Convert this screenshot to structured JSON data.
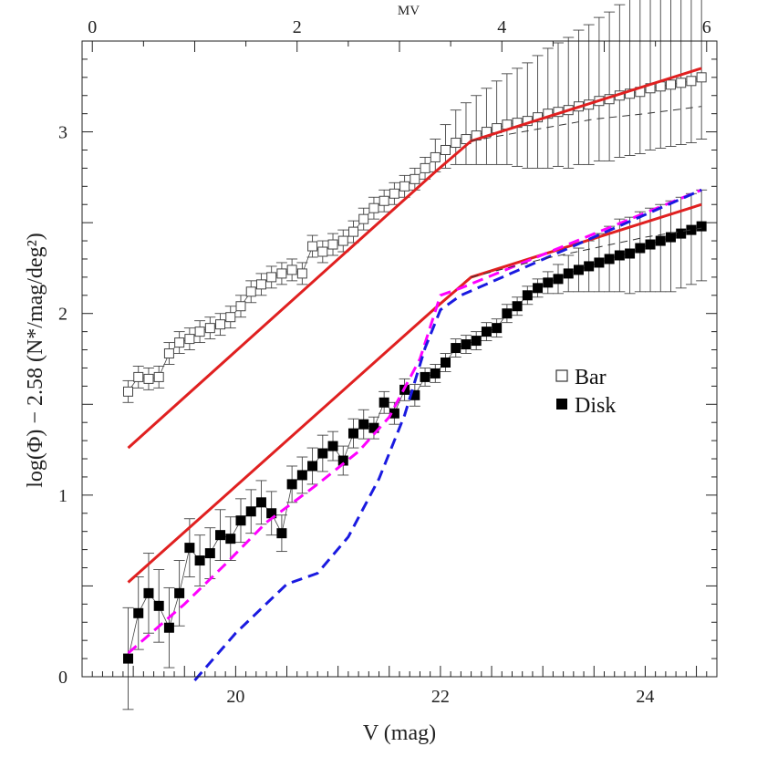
{
  "chart_data": {
    "type": "scatter",
    "title": "",
    "xlabel": "V (mag)",
    "ylabel": "log(Φ) − 2.58  (N*/mag/deg²)",
    "top_xlabel": "MV",
    "xlim": [
      18.5,
      24.7
    ],
    "ylim": [
      0,
      3.5
    ],
    "x_ticks": [
      "20",
      "22",
      "24"
    ],
    "x_tick_values": [
      20,
      22,
      24
    ],
    "top_ticks": [
      "0",
      "2",
      "4",
      "6"
    ],
    "top_tick_values": [
      18.6,
      20.6,
      22.6,
      24.6
    ],
    "y_ticks": [
      "0",
      "1",
      "2",
      "3"
    ],
    "y_tick_values": [
      0,
      1,
      2,
      3
    ],
    "grid": false,
    "legend": {
      "position": "right-middle",
      "entries": [
        {
          "label": "Bar",
          "marker": "open-square"
        },
        {
          "label": "Disk",
          "marker": "filled-square"
        }
      ]
    },
    "series": [
      {
        "name": "Bar",
        "marker": "open-square",
        "x": [
          18.95,
          19.05,
          19.15,
          19.25,
          19.35,
          19.45,
          19.55,
          19.65,
          19.75,
          19.85,
          19.95,
          20.05,
          20.15,
          20.25,
          20.35,
          20.45,
          20.55,
          20.65,
          20.75,
          20.85,
          20.95,
          21.05,
          21.15,
          21.25,
          21.35,
          21.45,
          21.55,
          21.65,
          21.75,
          21.85,
          21.95,
          22.05,
          22.15,
          22.25,
          22.35,
          22.45,
          22.55,
          22.65,
          22.75,
          22.85,
          22.95,
          23.05,
          23.15,
          23.25,
          23.35,
          23.45,
          23.55,
          23.65,
          23.75,
          23.85,
          23.95,
          24.05,
          24.15,
          24.25,
          24.35,
          24.45,
          24.55
        ],
        "y": [
          1.57,
          1.65,
          1.64,
          1.65,
          1.78,
          1.84,
          1.86,
          1.9,
          1.92,
          1.94,
          1.98,
          2.04,
          2.12,
          2.16,
          2.2,
          2.22,
          2.24,
          2.22,
          2.37,
          2.34,
          2.38,
          2.4,
          2.45,
          2.52,
          2.58,
          2.62,
          2.66,
          2.7,
          2.74,
          2.8,
          2.86,
          2.9,
          2.94,
          2.96,
          2.98,
          3.0,
          3.02,
          3.04,
          3.05,
          3.06,
          3.08,
          3.1,
          3.11,
          3.12,
          3.14,
          3.15,
          3.17,
          3.18,
          3.2,
          3.21,
          3.22,
          3.24,
          3.25,
          3.26,
          3.27,
          3.28,
          3.3
        ],
        "err_up": [
          0.06,
          0.06,
          0.06,
          0.06,
          0.06,
          0.06,
          0.06,
          0.06,
          0.06,
          0.06,
          0.06,
          0.06,
          0.06,
          0.06,
          0.06,
          0.06,
          0.06,
          0.06,
          0.06,
          0.06,
          0.06,
          0.06,
          0.06,
          0.06,
          0.06,
          0.06,
          0.06,
          0.06,
          0.06,
          0.06,
          0.1,
          0.14,
          0.18,
          0.2,
          0.22,
          0.24,
          0.26,
          0.28,
          0.3,
          0.32,
          0.34,
          0.36,
          0.38,
          0.4,
          0.42,
          0.44,
          0.46,
          0.48,
          0.5,
          0.52,
          0.54,
          0.56,
          0.58,
          0.6,
          0.62,
          0.64,
          0.66
        ],
        "err_down": [
          0.06,
          0.06,
          0.06,
          0.06,
          0.06,
          0.06,
          0.06,
          0.06,
          0.06,
          0.06,
          0.06,
          0.06,
          0.06,
          0.06,
          0.06,
          0.06,
          0.06,
          0.06,
          0.06,
          0.06,
          0.06,
          0.06,
          0.06,
          0.06,
          0.06,
          0.06,
          0.06,
          0.06,
          0.06,
          0.06,
          0.08,
          0.1,
          0.12,
          0.14,
          0.16,
          0.18,
          0.2,
          0.22,
          0.24,
          0.26,
          0.28,
          0.3,
          0.3,
          0.32,
          0.32,
          0.33,
          0.33,
          0.34,
          0.34,
          0.34,
          0.34,
          0.34,
          0.34,
          0.34,
          0.34,
          0.34,
          0.34
        ]
      },
      {
        "name": "Disk",
        "marker": "filled-square",
        "x": [
          18.95,
          19.05,
          19.15,
          19.25,
          19.35,
          19.45,
          19.55,
          19.65,
          19.75,
          19.85,
          19.95,
          20.05,
          20.15,
          20.25,
          20.35,
          20.45,
          20.55,
          20.65,
          20.75,
          20.85,
          20.95,
          21.05,
          21.15,
          21.25,
          21.35,
          21.45,
          21.55,
          21.65,
          21.75,
          21.85,
          21.95,
          22.05,
          22.15,
          22.25,
          22.35,
          22.45,
          22.55,
          22.65,
          22.75,
          22.85,
          22.95,
          23.05,
          23.15,
          23.25,
          23.35,
          23.45,
          23.55,
          23.65,
          23.75,
          23.85,
          23.95,
          24.05,
          24.15,
          24.25,
          24.35,
          24.45,
          24.55
        ],
        "y": [
          0.1,
          0.35,
          0.46,
          0.39,
          0.27,
          0.46,
          0.71,
          0.64,
          0.68,
          0.78,
          0.76,
          0.86,
          0.91,
          0.96,
          0.9,
          0.79,
          1.06,
          1.11,
          1.16,
          1.23,
          1.27,
          1.19,
          1.34,
          1.39,
          1.37,
          1.51,
          1.45,
          1.58,
          1.55,
          1.65,
          1.67,
          1.73,
          1.81,
          1.83,
          1.85,
          1.9,
          1.92,
          2.0,
          2.04,
          2.1,
          2.14,
          2.17,
          2.19,
          2.22,
          2.24,
          2.26,
          2.28,
          2.3,
          2.32,
          2.33,
          2.36,
          2.38,
          2.4,
          2.42,
          2.44,
          2.46,
          2.48
        ],
        "err_up": [
          0.28,
          0.2,
          0.22,
          0.2,
          0.22,
          0.18,
          0.16,
          0.14,
          0.14,
          0.14,
          0.12,
          0.12,
          0.12,
          0.12,
          0.12,
          0.1,
          0.1,
          0.1,
          0.1,
          0.1,
          0.08,
          0.08,
          0.08,
          0.08,
          0.06,
          0.06,
          0.06,
          0.06,
          0.06,
          0.05,
          0.05,
          0.05,
          0.05,
          0.05,
          0.05,
          0.05,
          0.05,
          0.05,
          0.05,
          0.05,
          0.05,
          0.06,
          0.08,
          0.1,
          0.12,
          0.14,
          0.16,
          0.18,
          0.2,
          0.2,
          0.2,
          0.2,
          0.2,
          0.2,
          0.2,
          0.2,
          0.2
        ],
        "err_down": [
          0.28,
          0.2,
          0.22,
          0.2,
          0.22,
          0.18,
          0.16,
          0.14,
          0.14,
          0.14,
          0.12,
          0.12,
          0.12,
          0.12,
          0.12,
          0.1,
          0.1,
          0.1,
          0.1,
          0.1,
          0.08,
          0.08,
          0.08,
          0.08,
          0.06,
          0.06,
          0.06,
          0.06,
          0.06,
          0.05,
          0.05,
          0.05,
          0.05,
          0.05,
          0.05,
          0.05,
          0.05,
          0.05,
          0.05,
          0.05,
          0.05,
          0.06,
          0.08,
          0.1,
          0.12,
          0.14,
          0.16,
          0.18,
          0.2,
          0.22,
          0.24,
          0.26,
          0.28,
          0.3,
          0.3,
          0.3,
          0.3
        ]
      }
    ],
    "model_lines": [
      {
        "color": "#e02020",
        "style": "solid",
        "x": [
          18.95,
          21.95,
          22.3,
          24.55
        ],
        "y": [
          1.26,
          2.78,
          2.95,
          3.35
        ]
      },
      {
        "color": "#e02020",
        "style": "solid",
        "x": [
          18.95,
          21.95,
          22.3,
          24.55
        ],
        "y": [
          0.52,
          2.03,
          2.2,
          2.6
        ]
      },
      {
        "color": "#ff00ff",
        "style": "dashed",
        "x": [
          18.95,
          19.5,
          19.9,
          20.3,
          20.8,
          21.2,
          21.5,
          21.8,
          22.0,
          22.2,
          24.55
        ],
        "y": [
          0.13,
          0.4,
          0.62,
          0.85,
          1.06,
          1.24,
          1.43,
          1.75,
          2.1,
          2.14,
          2.68
        ]
      },
      {
        "color": "#1a1ae0",
        "style": "dashed",
        "x": [
          19.6,
          20.0,
          20.5,
          20.8,
          21.1,
          21.4,
          21.65,
          21.85,
          22.0,
          22.2,
          24.55
        ],
        "y": [
          -0.02,
          0.24,
          0.51,
          0.57,
          0.77,
          1.09,
          1.44,
          1.81,
          2.02,
          2.1,
          2.68
        ]
      },
      {
        "color": "#333333",
        "style": "dashed-thin",
        "x": [
          22.3,
          23.0,
          23.5,
          24.0,
          24.55
        ],
        "y": [
          2.95,
          3.02,
          3.07,
          3.1,
          3.14
        ]
      },
      {
        "color": "#333333",
        "style": "dashed-thin",
        "x": [
          22.3,
          23.0,
          23.5,
          24.0,
          24.55
        ],
        "y": [
          2.2,
          2.3,
          2.36,
          2.42,
          2.47
        ]
      }
    ]
  }
}
